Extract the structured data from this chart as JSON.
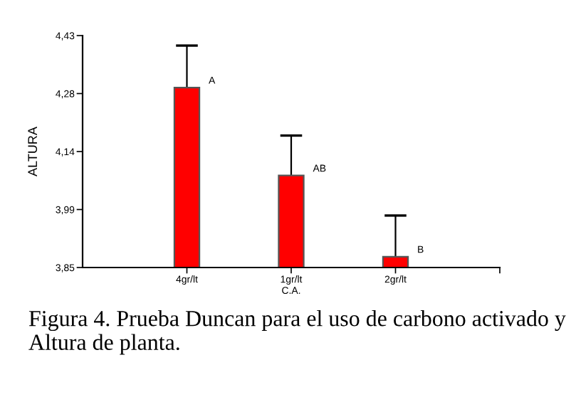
{
  "chart_data": {
    "type": "bar",
    "xlabel": "C.A.",
    "ylabel": "ALTURA",
    "categories": [
      "4gr/lt",
      "1gr/lt",
      "2gr/lt"
    ],
    "series": [
      {
        "color": "#ff0000",
        "values": [
          4.3,
          4.08,
          3.877
        ],
        "errors": [
          0.105,
          0.1,
          0.103
        ]
      }
    ],
    "ylim": [
      3.85,
      4.43
    ],
    "yticks": [
      {
        "value": 3.85,
        "label": "3,85"
      },
      {
        "value": 3.995,
        "label": "3,99"
      },
      {
        "value": 4.14,
        "label": "4,14"
      },
      {
        "value": 4.285,
        "label": "4,28"
      },
      {
        "value": 4.43,
        "label": "4,43"
      }
    ],
    "grid": false,
    "legend": false,
    "annotations": [
      {
        "text": "A",
        "x": "4gr/lt",
        "y": 4.3
      },
      {
        "text": "AB",
        "x": "1gr/lt",
        "y": 4.08
      },
      {
        "text": "B",
        "x": "2gr/lt",
        "y": 3.877
      },
      "Figura 4. Prueba Duncan para el uso de carbono activado y Altura de planta."
    ]
  }
}
